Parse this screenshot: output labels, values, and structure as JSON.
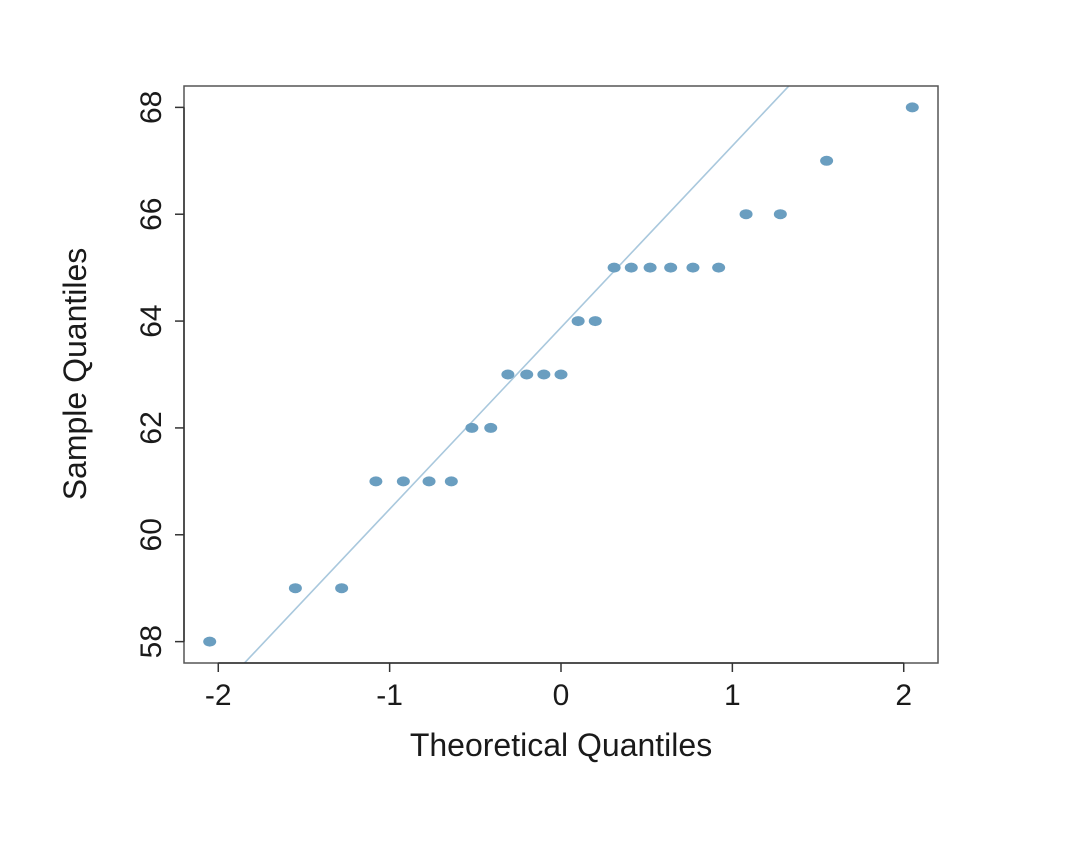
{
  "chart_data": {
    "type": "scatter",
    "title": "",
    "xlabel": "Theoretical Quantiles",
    "ylabel": "Sample Quantiles",
    "xlim": [
      -2.2,
      2.2
    ],
    "ylim": [
      57.6,
      68.4
    ],
    "x_ticks": [
      -2,
      -1,
      0,
      1,
      2
    ],
    "x_tick_labels": [
      "-2",
      "-1",
      "0",
      "1",
      "2"
    ],
    "y_ticks": [
      58,
      60,
      62,
      64,
      66,
      68
    ],
    "y_tick_labels": [
      "58",
      "60",
      "62",
      "64",
      "66",
      "68"
    ],
    "grid": false,
    "legend": "none",
    "point_color": "#6a9ec0",
    "line_color": "#a9c8dd",
    "reference_line": {
      "intercept": 63.88,
      "slope": 3.4
    },
    "points": [
      {
        "x": -2.05,
        "y": 58
      },
      {
        "x": -1.55,
        "y": 59
      },
      {
        "x": -1.28,
        "y": 59
      },
      {
        "x": -1.08,
        "y": 61
      },
      {
        "x": -0.92,
        "y": 61
      },
      {
        "x": -0.77,
        "y": 61
      },
      {
        "x": -0.64,
        "y": 61
      },
      {
        "x": -0.52,
        "y": 62
      },
      {
        "x": -0.41,
        "y": 62
      },
      {
        "x": -0.31,
        "y": 63
      },
      {
        "x": -0.2,
        "y": 63
      },
      {
        "x": -0.1,
        "y": 63
      },
      {
        "x": 0.0,
        "y": 63
      },
      {
        "x": 0.1,
        "y": 64
      },
      {
        "x": 0.2,
        "y": 64
      },
      {
        "x": 0.31,
        "y": 65
      },
      {
        "x": 0.41,
        "y": 65
      },
      {
        "x": 0.52,
        "y": 65
      },
      {
        "x": 0.64,
        "y": 65
      },
      {
        "x": 0.77,
        "y": 65
      },
      {
        "x": 0.92,
        "y": 65
      },
      {
        "x": 1.08,
        "y": 66
      },
      {
        "x": 1.28,
        "y": 66
      },
      {
        "x": 1.55,
        "y": 67
      },
      {
        "x": 2.05,
        "y": 68
      }
    ]
  }
}
